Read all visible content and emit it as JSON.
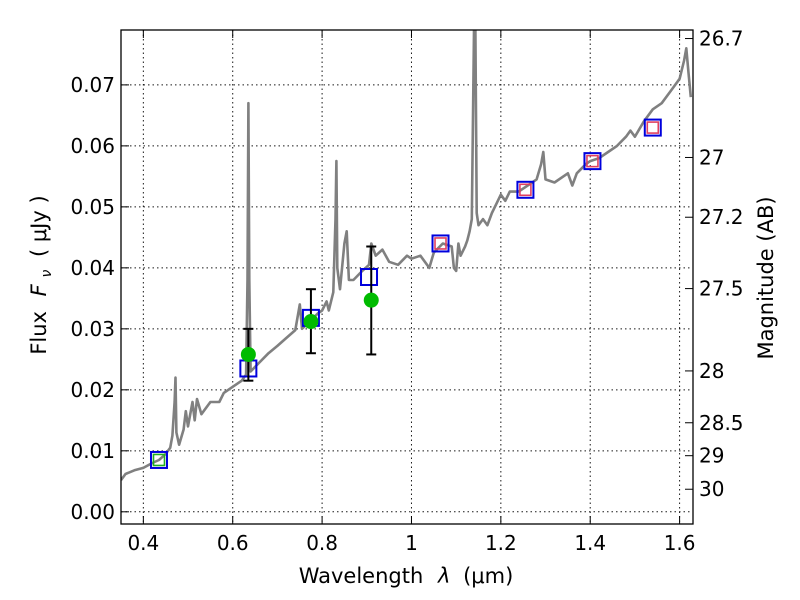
{
  "chart_data": {
    "type": "line",
    "xlabel_text": "Wavelength",
    "xlabel_var": "λ",
    "xlabel_unit": "(μm)",
    "ylabel_text": "Flux",
    "ylabel_var": "F",
    "ylabel_sub": "ν",
    "ylabel_unit": "( μJy )",
    "y2label": "Magnitude (AB)",
    "xlim": [
      0.35,
      1.63
    ],
    "ylim": [
      -0.002,
      0.079
    ],
    "grid": true,
    "x_ticks": [
      {
        "value": 0.4,
        "label": "0.4"
      },
      {
        "value": 0.6,
        "label": "0.6"
      },
      {
        "value": 0.8,
        "label": "0.8"
      },
      {
        "value": 1.0,
        "label": "1"
      },
      {
        "value": 1.2,
        "label": "1.2"
      },
      {
        "value": 1.4,
        "label": "1.4"
      },
      {
        "value": 1.6,
        "label": "1.6"
      }
    ],
    "y_ticks": [
      {
        "value": 0.0,
        "label": "0.00"
      },
      {
        "value": 0.01,
        "label": "0.01"
      },
      {
        "value": 0.02,
        "label": "0.02"
      },
      {
        "value": 0.03,
        "label": "0.03"
      },
      {
        "value": 0.04,
        "label": "0.04"
      },
      {
        "value": 0.05,
        "label": "0.05"
      },
      {
        "value": 0.06,
        "label": "0.06"
      },
      {
        "value": 0.07,
        "label": "0.07"
      }
    ],
    "mag_ticks": [
      {
        "label": "26.7",
        "flux": 0.0776
      },
      {
        "label": "27",
        "flux": 0.0581
      },
      {
        "label": "27.2",
        "flux": 0.0483
      },
      {
        "label": "27.5",
        "flux": 0.0366
      },
      {
        "label": "28",
        "flux": 0.0231
      },
      {
        "label": "28.5",
        "flux": 0.0146
      },
      {
        "label": "29",
        "flux": 0.0092
      },
      {
        "label": "30",
        "flux": 0.0037
      }
    ],
    "series": [
      {
        "name": "model spectrum",
        "kind": "line",
        "color": "#808080",
        "points": [
          [
            0.35,
            0.0052
          ],
          [
            0.36,
            0.0062
          ],
          [
            0.38,
            0.0068
          ],
          [
            0.4,
            0.0072
          ],
          [
            0.42,
            0.008
          ],
          [
            0.435,
            0.0085
          ],
          [
            0.45,
            0.0095
          ],
          [
            0.46,
            0.0105
          ],
          [
            0.465,
            0.0125
          ],
          [
            0.47,
            0.018
          ],
          [
            0.472,
            0.022
          ],
          [
            0.474,
            0.013
          ],
          [
            0.48,
            0.011
          ],
          [
            0.49,
            0.0135
          ],
          [
            0.495,
            0.0165
          ],
          [
            0.5,
            0.014
          ],
          [
            0.51,
            0.018
          ],
          [
            0.515,
            0.015
          ],
          [
            0.52,
            0.0185
          ],
          [
            0.53,
            0.016
          ],
          [
            0.55,
            0.018
          ],
          [
            0.57,
            0.018
          ],
          [
            0.58,
            0.0195
          ],
          [
            0.6,
            0.0205
          ],
          [
            0.62,
            0.0215
          ],
          [
            0.63,
            0.0225
          ],
          [
            0.633,
            0.038
          ],
          [
            0.635,
            0.067
          ],
          [
            0.637,
            0.038
          ],
          [
            0.64,
            0.023
          ],
          [
            0.66,
            0.0245
          ],
          [
            0.68,
            0.026
          ],
          [
            0.7,
            0.0272
          ],
          [
            0.72,
            0.0285
          ],
          [
            0.74,
            0.0298
          ],
          [
            0.75,
            0.034
          ],
          [
            0.755,
            0.03
          ],
          [
            0.77,
            0.031
          ],
          [
            0.79,
            0.0325
          ],
          [
            0.8,
            0.033
          ],
          [
            0.81,
            0.0345
          ],
          [
            0.815,
            0.033
          ],
          [
            0.825,
            0.036
          ],
          [
            0.83,
            0.048
          ],
          [
            0.832,
            0.0575
          ],
          [
            0.834,
            0.04
          ],
          [
            0.84,
            0.0365
          ],
          [
            0.85,
            0.044
          ],
          [
            0.855,
            0.046
          ],
          [
            0.86,
            0.038
          ],
          [
            0.87,
            0.038
          ],
          [
            0.89,
            0.0395
          ],
          [
            0.905,
            0.0405
          ],
          [
            0.91,
            0.044
          ],
          [
            0.92,
            0.042
          ],
          [
            0.935,
            0.043
          ],
          [
            0.95,
            0.041
          ],
          [
            0.97,
            0.0405
          ],
          [
            0.99,
            0.042
          ],
          [
            1.0,
            0.0415
          ],
          [
            1.02,
            0.042
          ],
          [
            1.04,
            0.04
          ],
          [
            1.05,
            0.0425
          ],
          [
            1.07,
            0.044
          ],
          [
            1.09,
            0.0435
          ],
          [
            1.095,
            0.04
          ],
          [
            1.1,
            0.0395
          ],
          [
            1.105,
            0.044
          ],
          [
            1.11,
            0.042
          ],
          [
            1.12,
            0.0435
          ],
          [
            1.125,
            0.0445
          ],
          [
            1.13,
            0.046
          ],
          [
            1.135,
            0.048
          ],
          [
            1.14,
            0.079
          ],
          [
            1.143,
            0.079
          ],
          [
            1.146,
            0.049
          ],
          [
            1.15,
            0.047
          ],
          [
            1.16,
            0.048
          ],
          [
            1.17,
            0.047
          ],
          [
            1.18,
            0.049
          ],
          [
            1.19,
            0.0505
          ],
          [
            1.2,
            0.052
          ],
          [
            1.21,
            0.051
          ],
          [
            1.22,
            0.0525
          ],
          [
            1.24,
            0.0525
          ],
          [
            1.26,
            0.0535
          ],
          [
            1.28,
            0.0545
          ],
          [
            1.29,
            0.057
          ],
          [
            1.295,
            0.059
          ],
          [
            1.3,
            0.0545
          ],
          [
            1.32,
            0.054
          ],
          [
            1.35,
            0.0555
          ],
          [
            1.36,
            0.0535
          ],
          [
            1.37,
            0.0555
          ],
          [
            1.39,
            0.057
          ],
          [
            1.4,
            0.0575
          ],
          [
            1.42,
            0.058
          ],
          [
            1.44,
            0.059
          ],
          [
            1.46,
            0.06
          ],
          [
            1.48,
            0.0615
          ],
          [
            1.49,
            0.0625
          ],
          [
            1.5,
            0.0615
          ],
          [
            1.52,
            0.064
          ],
          [
            1.54,
            0.066
          ],
          [
            1.56,
            0.067
          ],
          [
            1.58,
            0.069
          ],
          [
            1.6,
            0.071
          ],
          [
            1.61,
            0.074
          ],
          [
            1.615,
            0.076
          ],
          [
            1.62,
            0.072
          ],
          [
            1.625,
            0.068
          ]
        ]
      },
      {
        "name": "model photometry (blue squares)",
        "kind": "square",
        "color": "#0000dd",
        "points": [
          [
            0.435,
            0.0085
          ],
          [
            0.635,
            0.0235
          ],
          [
            0.775,
            0.0318
          ],
          [
            0.905,
            0.0385
          ],
          [
            1.065,
            0.044
          ],
          [
            1.255,
            0.0528
          ],
          [
            1.405,
            0.0575
          ],
          [
            1.54,
            0.063
          ]
        ]
      },
      {
        "name": "observed photometry (red squares)",
        "kind": "square-small",
        "color": "#e04060",
        "points": [
          [
            1.065,
            0.044
          ],
          [
            1.255,
            0.0528
          ],
          [
            1.405,
            0.0575
          ],
          [
            1.54,
            0.063
          ]
        ]
      },
      {
        "name": "observed photometry (green squares)",
        "kind": "square-small",
        "color": "#20b020",
        "points": [
          [
            0.435,
            0.0085
          ]
        ]
      },
      {
        "name": "observed photometry with errors (green circles)",
        "kind": "circle",
        "color": "#00bb00",
        "points": [
          {
            "x": 0.635,
            "y": 0.0258,
            "ylo": 0.0215,
            "yhi": 0.03
          },
          {
            "x": 0.775,
            "y": 0.0312,
            "ylo": 0.026,
            "yhi": 0.0365
          },
          {
            "x": 0.91,
            "y": 0.0347,
            "ylo": 0.0258,
            "yhi": 0.0435
          }
        ]
      }
    ]
  }
}
